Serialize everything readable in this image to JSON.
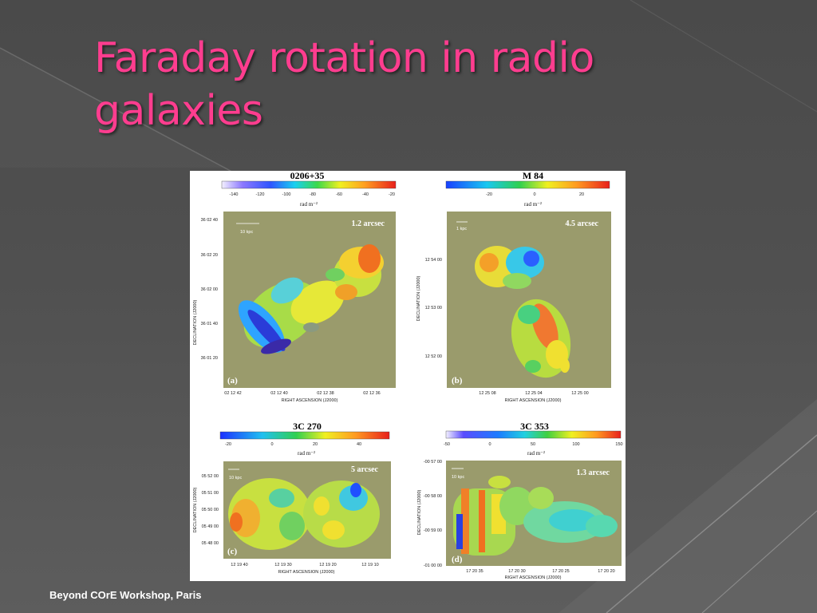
{
  "slide": {
    "title": "Faraday rotation in radio galaxies",
    "footer": "Beyond COrE Workshop, Paris"
  },
  "figure": {
    "panels": [
      {
        "id": "a",
        "name": "0206+35",
        "label": "(a)",
        "resolution": "1.2 arcsec",
        "scale_bar": "10 kpc",
        "colorbar_ticks": [
          "-140",
          "-120",
          "-100",
          "-80",
          "-60",
          "-40",
          "-20"
        ],
        "unit": "rad m⁻²",
        "dec_ticks": [
          "36 02 40",
          "36 02 20",
          "36 02 00",
          "36 01 40",
          "36 01 20"
        ],
        "ra_ticks": [
          "02 12 42",
          "02 12 40",
          "02 12 38",
          "02 12 36"
        ],
        "ylabel": "DECLINATION (J2000)",
        "xlabel": "RIGHT ASCENSION (J2000)"
      },
      {
        "id": "b",
        "name": "M 84",
        "label": "(b)",
        "resolution": "4.5 arcsec",
        "scale_bar": "1 kpc",
        "colorbar_ticks": [
          "-20",
          "0",
          "20"
        ],
        "unit": "rad m⁻²",
        "dec_ticks": [
          "12 54 00",
          "12 53 00",
          "12 52 00"
        ],
        "ra_ticks": [
          "12 25 08",
          "12 25 04",
          "12 25 00"
        ],
        "ylabel": "DECLINATION (J2000)",
        "xlabel": "RIGHT ASCENSION (J2000)"
      },
      {
        "id": "c",
        "name": "3C 270",
        "label": "(c)",
        "resolution": "5 arcsec",
        "scale_bar": "10 kpc",
        "colorbar_ticks": [
          "-20",
          "0",
          "20",
          "40"
        ],
        "unit": "rad m⁻²",
        "dec_ticks": [
          "05 52 00",
          "05 51 00",
          "05 50 00",
          "05 49 00",
          "05 48 00"
        ],
        "ra_ticks": [
          "12 19 40",
          "12 19 30",
          "12 19 20",
          "12 19 10"
        ],
        "ylabel": "DECLINATION (J2000)",
        "xlabel": "RIGHT ASCENSION (J2000)"
      },
      {
        "id": "d",
        "name": "3C 353",
        "label": "(d)",
        "resolution": "1.3 arcsec",
        "scale_bar": "10 kpc",
        "colorbar_ticks": [
          "-50",
          "0",
          "50",
          "100",
          "150"
        ],
        "unit": "rad m⁻²",
        "dec_ticks": [
          "-00 57 00",
          "-00 58 00",
          "-00 59 00",
          "-01 00 00"
        ],
        "ra_ticks": [
          "17 20 35",
          "17 20 30",
          "17 20 25",
          "17 20 20"
        ],
        "ylabel": "DECLINATION (J2000)",
        "xlabel": "RIGHT ASCENSION (J2000)"
      }
    ]
  }
}
